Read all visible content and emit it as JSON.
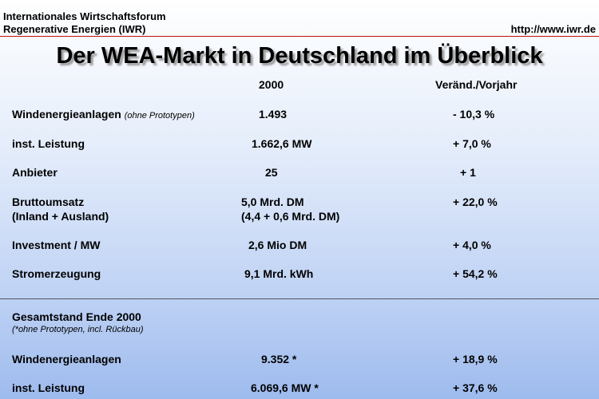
{
  "header": {
    "org_line1": "Internationales Wirtschaftsforum",
    "org_line2": "Regenerative Energien (IWR)",
    "url": "http://www.iwr.de"
  },
  "title": "Der WEA-Markt in Deutschland im Überblick",
  "columns": {
    "year": "2000",
    "change": "Veränd./Vorjahr"
  },
  "rows": [
    {
      "label": "Windenergieanlagen",
      "note": "(ohne Prototypen)",
      "value": "1.493",
      "change": "-  10,3 %"
    },
    {
      "label": "inst. Leistung",
      "value": "1.662,6 MW",
      "change": "+   7,0 %"
    },
    {
      "label": "Anbieter",
      "value": "25",
      "change": "+ 1"
    },
    {
      "label": "Bruttoumsatz",
      "label2": "(Inland + Ausland)",
      "value": "5,0 Mrd. DM",
      "value2": "(4,4 + 0,6 Mrd. DM)",
      "change": "+ 22,0 %"
    },
    {
      "label": "Investment / MW",
      "value": "2,6 Mio DM",
      "change": "+   4,0 %"
    },
    {
      "label": "Stromerzeugung",
      "value": "9,1 Mrd. kWh",
      "change": "+ 54,2 %"
    }
  ],
  "summary": {
    "heading": "Gesamtstand Ende 2000",
    "subnote": "(*ohne Prototypen, incl. Rückbau)",
    "rows": [
      {
        "label": "Windenergieanlagen",
        "value": "9.352 *",
        "change": "+ 18,9 %"
      },
      {
        "label": "inst. Leistung",
        "value": "6.069,6 MW *",
        "change": "+ 37,6 %"
      }
    ]
  }
}
